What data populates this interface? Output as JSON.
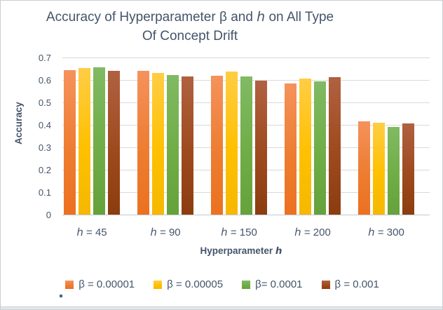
{
  "chart_data": {
    "type": "bar",
    "title": "Accuracy  of Hyperparameter  β and ℎ on All Type Of Concept Drift",
    "title_lines": [
      "Accuracy  of Hyperparameter  β and ℎ on All Type",
      "Of Concept Drift"
    ],
    "categories": [
      "ℎ = 45",
      "ℎ = 90",
      "ℎ = 150",
      "ℎ = 200",
      "ℎ = 300"
    ],
    "series": [
      {
        "name": "β = 0.00001",
        "color": "#ED7D31",
        "color_top": "#F5925C",
        "color_bottom": "#EC7120",
        "values": [
          0.643,
          0.64,
          0.62,
          0.585,
          0.415
        ]
      },
      {
        "name": "β = 0.00005",
        "color": "#FFC000",
        "color_top": "#FFCD45",
        "color_bottom": "#F5B800",
        "values": [
          0.652,
          0.63,
          0.638,
          0.607,
          0.41
        ]
      },
      {
        "name": "β= 0.0001",
        "color": "#70AD47",
        "color_top": "#81BA63",
        "color_bottom": "#65A23C",
        "values": [
          0.657,
          0.622,
          0.615,
          0.595,
          0.39
        ]
      },
      {
        "name": "β = 0.001",
        "color": "#9E4A1E",
        "color_top": "#B06140",
        "color_bottom": "#8B3D0F",
        "values": [
          0.64,
          0.615,
          0.598,
          0.613,
          0.407
        ]
      }
    ],
    "xlabel": "Hyperparameter ℎ",
    "ylabel": "Accuracy",
    "ylim": [
      0,
      0.7
    ],
    "ytick_step": 0.1,
    "yticks": [
      "0.7",
      "0.6",
      "0.5",
      "0.4",
      "0.3",
      "0.2",
      "0.1",
      "0"
    ],
    "grid": true,
    "legend_position": "bottom"
  },
  "colors": {
    "title_text": "#44546A",
    "axis_text": "#44546A",
    "gridline": "#D9D9D9",
    "axis_line": "#C3C9D0",
    "page_border": "#C9CED3",
    "bottom_strip": "#E4E8EB"
  }
}
